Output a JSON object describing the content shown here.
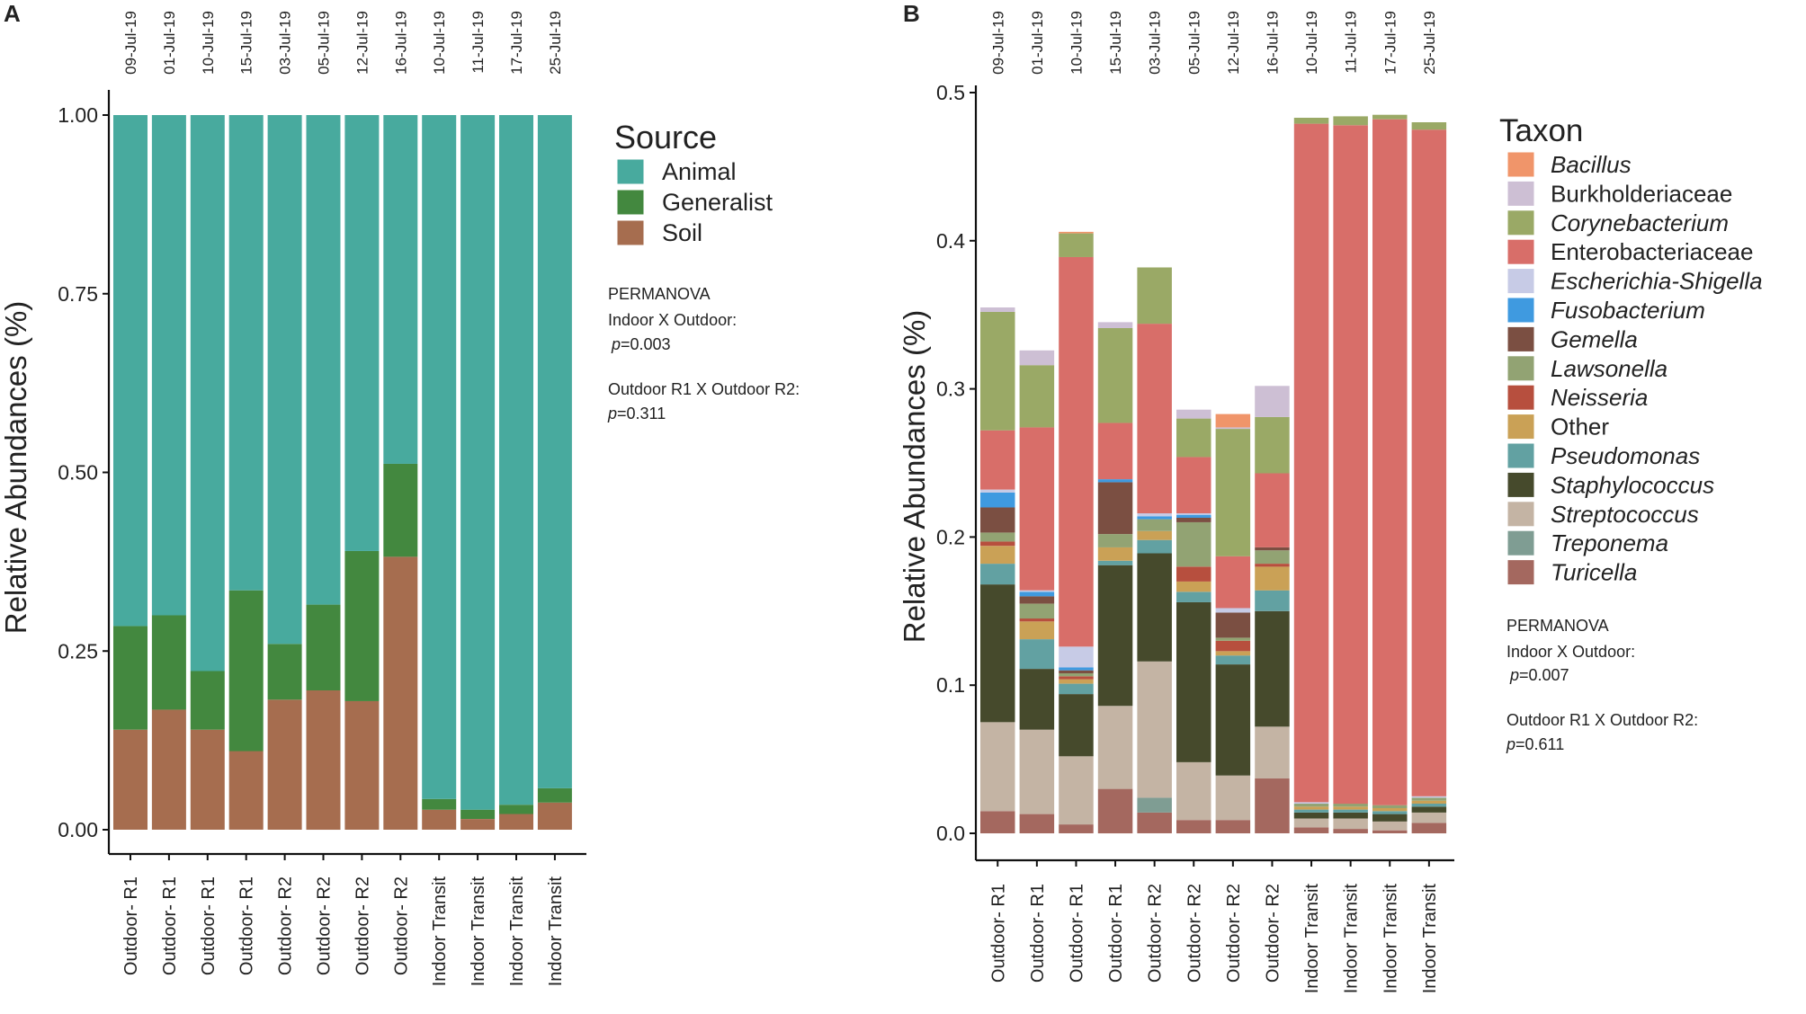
{
  "panel_a": {
    "letter": "A"
  },
  "panel_b": {
    "letter": "B"
  },
  "chart_data": [
    {
      "type": "bar",
      "stacked": true,
      "panel": "A",
      "ylabel": "Relative Abundances (%)",
      "xlabel": "",
      "ylim": [
        0,
        1
      ],
      "yticks": [
        "0.00",
        "0.25",
        "0.50",
        "0.75",
        "1.00"
      ],
      "ytick_values": [
        0,
        0.25,
        0.5,
        0.75,
        1.0
      ],
      "categories": [
        "Outdoor- R1",
        "Outdoor- R1",
        "Outdoor- R1",
        "Outdoor- R1",
        "Outdoor- R2",
        "Outdoor- R2",
        "Outdoor- R2",
        "Outdoor- R2",
        "Indoor Transit",
        "Indoor Transit",
        "Indoor Transit",
        "Indoor Transit"
      ],
      "dates": [
        "09-Jul-19",
        "01-Jul-19",
        "10-Jul-19",
        "15-Jul-19",
        "03-Jul-19",
        "05-Jul-19",
        "12-Jul-19",
        "16-Jul-19",
        "10-Jul-19",
        "11-Jul-19",
        "17-Jul-19",
        "25-Jul-19"
      ],
      "legend_title": "Source",
      "series": [
        {
          "name": "Soil",
          "color": "#a66d4f",
          "values": [
            0.14,
            0.168,
            0.14,
            0.11,
            0.182,
            0.195,
            0.18,
            0.382,
            0.028,
            0.015,
            0.022,
            0.038
          ]
        },
        {
          "name": "Generalist",
          "color": "#43883f",
          "values": [
            0.145,
            0.132,
            0.082,
            0.225,
            0.078,
            0.12,
            0.21,
            0.13,
            0.015,
            0.013,
            0.013,
            0.02
          ]
        },
        {
          "name": "Animal",
          "color": "#48aa9e",
          "values": [
            0.715,
            0.7,
            0.778,
            0.665,
            0.74,
            0.685,
            0.61,
            0.488,
            0.957,
            0.972,
            0.965,
            0.942
          ]
        }
      ],
      "legend_order": [
        "Animal",
        "Generalist",
        "Soil"
      ],
      "annotation": {
        "title": "PERMANOVA",
        "line1": "Indoor X Outdoor:",
        "p1_label": "p",
        "p1_value": "=0.003",
        "line2": "Outdoor R1 X Outdoor R2:",
        "p2_label": "p",
        "p2_value": "=0.311"
      }
    },
    {
      "type": "bar",
      "stacked": true,
      "panel": "B",
      "ylabel": "Relative Abundances (%)",
      "xlabel": "",
      "ylim": [
        0,
        0.5
      ],
      "yticks": [
        "0.0",
        "0.1",
        "0.2",
        "0.3",
        "0.4",
        "0.5"
      ],
      "ytick_values": [
        0,
        0.1,
        0.2,
        0.3,
        0.4,
        0.5
      ],
      "categories": [
        "Outdoor- R1",
        "Outdoor- R1",
        "Outdoor- R1",
        "Outdoor- R1",
        "Outdoor- R2",
        "Outdoor- R2",
        "Outdoor- R2",
        "Outdoor- R2",
        "Indoor Transit",
        "Indoor Transit",
        "Indoor Transit",
        "Indoor Transit"
      ],
      "dates": [
        "09-Jul-19",
        "01-Jul-19",
        "10-Jul-19",
        "15-Jul-19",
        "03-Jul-19",
        "05-Jul-19",
        "12-Jul-19",
        "16-Jul-19",
        "10-Jul-19",
        "11-Jul-19",
        "17-Jul-19",
        "25-Jul-19"
      ],
      "legend_title": "Taxon",
      "series": [
        {
          "name": "Turicella",
          "italic": true,
          "color": "#a4685f",
          "values": [
            0.015,
            0.013,
            0.006,
            0.03,
            0.014,
            0.009,
            0.009,
            0.037,
            0.004,
            0.003,
            0.002,
            0.007
          ]
        },
        {
          "name": "Treponema",
          "italic": true,
          "color": "#7f9d93",
          "values": [
            0.0,
            0.0,
            0.0,
            0.0,
            0.01,
            0.0,
            0.0,
            0.0,
            0.0,
            0.0,
            0.0,
            0.0
          ]
        },
        {
          "name": "Streptococcus",
          "italic": true,
          "color": "#c4b4a4",
          "values": [
            0.06,
            0.057,
            0.046,
            0.056,
            0.092,
            0.039,
            0.03,
            0.035,
            0.006,
            0.007,
            0.006,
            0.007
          ]
        },
        {
          "name": "Staphylococcus",
          "italic": true,
          "color": "#464a2c",
          "values": [
            0.093,
            0.041,
            0.042,
            0.095,
            0.073,
            0.108,
            0.075,
            0.078,
            0.004,
            0.004,
            0.005,
            0.004
          ]
        },
        {
          "name": "Pseudomonas",
          "italic": true,
          "color": "#62a1a2",
          "values": [
            0.014,
            0.02,
            0.007,
            0.003,
            0.009,
            0.007,
            0.006,
            0.014,
            0.002,
            0.002,
            0.002,
            0.002
          ]
        },
        {
          "name": "Other",
          "italic": false,
          "color": "#caa156",
          "values": [
            0.012,
            0.012,
            0.003,
            0.009,
            0.006,
            0.007,
            0.003,
            0.016,
            0.002,
            0.002,
            0.002,
            0.002
          ]
        },
        {
          "name": "Neisseria",
          "italic": true,
          "color": "#b74f3e",
          "values": [
            0.003,
            0.002,
            0.002,
            0.0,
            0.0,
            0.01,
            0.007,
            0.002,
            0.0,
            0.0,
            0.0,
            0.0
          ]
        },
        {
          "name": "Lawsonella",
          "italic": true,
          "color": "#92a373",
          "values": [
            0.006,
            0.01,
            0.002,
            0.009,
            0.008,
            0.03,
            0.002,
            0.009,
            0.002,
            0.002,
            0.002,
            0.002
          ]
        },
        {
          "name": "Gemella",
          "italic": true,
          "color": "#7b4f42",
          "values": [
            0.017,
            0.005,
            0.002,
            0.035,
            0.0,
            0.003,
            0.017,
            0.002,
            0.0,
            0.0,
            0.0,
            0.0
          ]
        },
        {
          "name": "Fusobacterium",
          "italic": true,
          "color": "#3f9ae0",
          "values": [
            0.01,
            0.003,
            0.002,
            0.002,
            0.002,
            0.002,
            0.0,
            0.0,
            0.0,
            0.0,
            0.0,
            0.0
          ]
        },
        {
          "name": "Escherichia-Shigella",
          "italic": true,
          "color": "#c7cbe6",
          "values": [
            0.002,
            0.001,
            0.014,
            0.0,
            0.002,
            0.001,
            0.003,
            0.0,
            0.001,
            0.0,
            0.0,
            0.001
          ]
        },
        {
          "name": "Enterobacteriaceae",
          "italic": false,
          "color": "#d86e69",
          "values": [
            0.04,
            0.11,
            0.263,
            0.038,
            0.128,
            0.038,
            0.035,
            0.05,
            0.458,
            0.458,
            0.463,
            0.45
          ]
        },
        {
          "name": "Corynebacterium",
          "italic": true,
          "color": "#9aa966",
          "values": [
            0.08,
            0.042,
            0.016,
            0.064,
            0.038,
            0.026,
            0.086,
            0.038,
            0.004,
            0.006,
            0.003,
            0.005
          ]
        },
        {
          "name": "Burkholderiaceae",
          "italic": false,
          "color": "#cdbfd4",
          "values": [
            0.003,
            0.01,
            0.0,
            0.004,
            0.0,
            0.006,
            0.001,
            0.021,
            0.0,
            0.0,
            0.0,
            0.0
          ]
        },
        {
          "name": "Bacillus",
          "italic": true,
          "color": "#f0956a",
          "values": [
            0.0,
            0.0,
            0.001,
            0.0,
            0.0,
            0.0,
            0.009,
            0.0,
            0.0,
            0.0,
            0.0,
            0.0
          ]
        }
      ],
      "legend_order": [
        "Bacillus",
        "Burkholderiaceae",
        "Corynebacterium",
        "Enterobacteriaceae",
        "Escherichia-Shigella",
        "Fusobacterium",
        "Gemella",
        "Lawsonella",
        "Neisseria",
        "Other",
        "Pseudomonas",
        "Staphylococcus",
        "Streptococcus",
        "Treponema",
        "Turicella"
      ],
      "annotation": {
        "title": "PERMANOVA",
        "line1": "Indoor X Outdoor:",
        "p1_label": "p",
        "p1_value": "=0.007",
        "line2": "Outdoor R1 X Outdoor R2:",
        "p2_label": "p",
        "p2_value": "=0.611"
      }
    }
  ]
}
